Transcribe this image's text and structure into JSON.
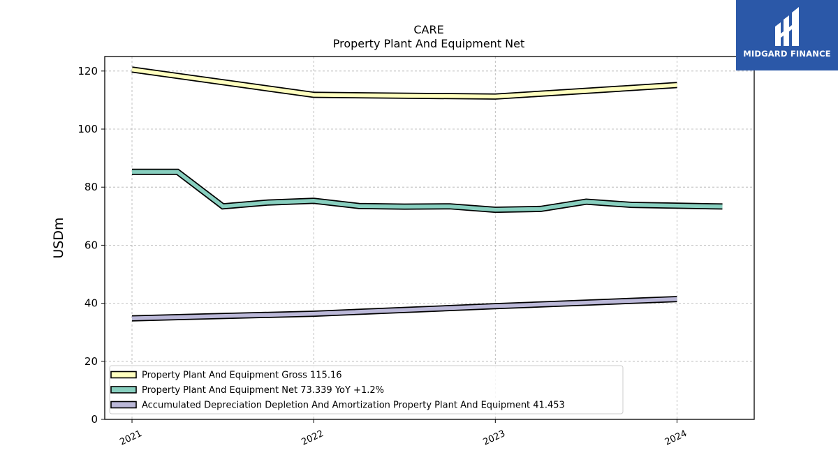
{
  "chart_data": {
    "type": "line",
    "title": "CARE",
    "subtitle": "Property Plant And Equipment Net",
    "ylabel": "USDm",
    "xlabel": "",
    "ylim": [
      0,
      125
    ],
    "yticks": [
      0,
      20,
      40,
      60,
      80,
      100,
      120
    ],
    "xticks": [
      "2021",
      "2022",
      "2023",
      "2024"
    ],
    "grid": true,
    "legend_position": "lower-left",
    "series": [
      {
        "name": "Property Plant And Equipment Gross",
        "legend": "Property Plant And Equipment Gross  115.16",
        "color": "#ffffbf",
        "x": [
          2021.0,
          2022.0,
          2023.0,
          2024.0
        ],
        "values": [
          120.5,
          111.8,
          111.2,
          115.16
        ]
      },
      {
        "name": "Property Plant And Equipment Net",
        "legend": "Property Plant And Equipment Net  73.339 YoY +1.2%",
        "color": "#88cfbf",
        "x": [
          2021.0,
          2021.25,
          2021.5,
          2021.75,
          2022.0,
          2022.25,
          2022.5,
          2022.75,
          2023.0,
          2023.25,
          2023.5,
          2023.75,
          2024.0,
          2024.25
        ],
        "values": [
          85.3,
          85.3,
          73.4,
          74.7,
          75.3,
          73.5,
          73.3,
          73.4,
          72.2,
          72.5,
          75.0,
          73.9,
          73.6,
          73.339
        ]
      },
      {
        "name": "Accumulated Depreciation Depletion And Amortization Property Plant And Equipment",
        "legend": "Accumulated Depreciation Depletion And Amortization Property Plant And Equipment  41.453",
        "color": "#bbb8d8",
        "x": [
          2021.0,
          2022.0,
          2023.0,
          2024.0
        ],
        "values": [
          34.8,
          36.4,
          39.0,
          41.453
        ]
      }
    ]
  },
  "logo": {
    "text": "MIDGARD FINANCE",
    "background": "#2b58a8"
  }
}
